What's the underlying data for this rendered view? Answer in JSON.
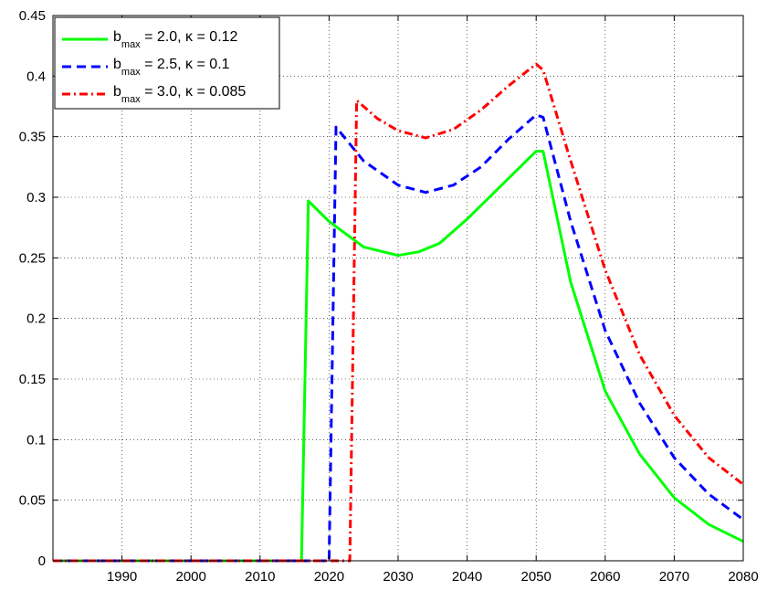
{
  "chart_data": {
    "type": "line",
    "title": "",
    "xlabel": "",
    "ylabel": "",
    "xlim": [
      1980,
      2080
    ],
    "ylim": [
      0,
      0.45
    ],
    "xticks": [
      1990,
      2000,
      2010,
      2020,
      2030,
      2040,
      2050,
      2060,
      2070,
      2080
    ],
    "yticks": [
      0,
      0.05,
      0.1,
      0.15,
      0.2,
      0.25,
      0.3,
      0.35,
      0.4,
      0.45
    ],
    "xtick_labels": [
      "1990",
      "2000",
      "2010",
      "2020",
      "2030",
      "2040",
      "2050",
      "2060",
      "2070",
      "2080"
    ],
    "ytick_labels": [
      "0",
      "0.05",
      "0.1",
      "0.15",
      "0.2",
      "0.25",
      "0.3",
      "0.35",
      "0.4",
      "0.45"
    ],
    "grid": true,
    "legend_position": "top-left",
    "series": [
      {
        "name": "b_max = 2.0, κ = 0.12",
        "legend": {
          "base": "b",
          "sub": "max",
          "rest": " = 2.0, κ = 0.12"
        },
        "color": "#00ff00",
        "style": "solid",
        "x": [
          1980,
          2016,
          2017,
          2020,
          2025,
          2030,
          2033,
          2036,
          2040,
          2045,
          2050,
          2051,
          2055,
          2060,
          2065,
          2070,
          2075,
          2080
        ],
        "y": [
          0,
          0,
          0.297,
          0.28,
          0.259,
          0.252,
          0.255,
          0.262,
          0.282,
          0.31,
          0.338,
          0.338,
          0.23,
          0.14,
          0.088,
          0.052,
          0.03,
          0.016
        ]
      },
      {
        "name": "b_max = 2.5, κ = 0.1",
        "legend": {
          "base": "b",
          "sub": "max",
          "rest": " = 2.5, κ = 0.1"
        },
        "color": "#0000ff",
        "style": "dashed",
        "x": [
          1980,
          2020,
          2021,
          2025,
          2030,
          2034,
          2038,
          2042,
          2046,
          2050,
          2051,
          2055,
          2060,
          2065,
          2070,
          2075,
          2080
        ],
        "y": [
          0,
          0,
          0.358,
          0.33,
          0.31,
          0.304,
          0.31,
          0.325,
          0.348,
          0.368,
          0.366,
          0.28,
          0.19,
          0.13,
          0.085,
          0.055,
          0.034
        ]
      },
      {
        "name": "b_max = 3.0, κ = 0.085",
        "legend": {
          "base": "b",
          "sub": "max",
          "rest": " = 3.0, κ = 0.085"
        },
        "color": "#ff0000",
        "style": "dashdot",
        "x": [
          1980,
          2023,
          2024,
          2027,
          2030,
          2034,
          2038,
          2042,
          2046,
          2050,
          2051,
          2055,
          2060,
          2065,
          2070,
          2075,
          2080
        ],
        "y": [
          0,
          0,
          0.38,
          0.365,
          0.355,
          0.349,
          0.356,
          0.372,
          0.392,
          0.41,
          0.405,
          0.33,
          0.24,
          0.17,
          0.12,
          0.085,
          0.063
        ]
      }
    ]
  }
}
